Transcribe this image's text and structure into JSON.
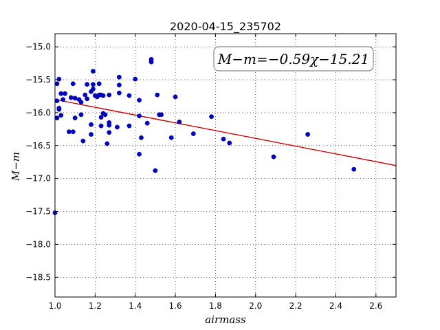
{
  "chart_data": {
    "type": "scatter",
    "title": "2020-04-15_235702",
    "xlabel": "airmass",
    "ylabel": "M−m",
    "xlim": [
      1.0,
      2.7
    ],
    "ylim": [
      -18.8,
      -14.8
    ],
    "y_inverted": true,
    "grid": true,
    "x_ticks": [
      1.0,
      1.2,
      1.4,
      1.6,
      1.8,
      2.0,
      2.2,
      2.4,
      2.6
    ],
    "x_tick_labels": [
      "1.0",
      "1.2",
      "1.4",
      "1.6",
      "1.8",
      "2.0",
      "2.2",
      "2.4",
      "2.6"
    ],
    "y_ticks": [
      -15.0,
      -15.5,
      -16.0,
      -16.5,
      -17.0,
      -17.5,
      -18.0,
      -18.5
    ],
    "y_tick_labels": [
      "−15.0",
      "−15.5",
      "−16.0",
      "−16.5",
      "−17.0",
      "−17.5",
      "−18.0",
      "−18.5"
    ],
    "annotation": "M−m=−0.59χ−15.21",
    "fit": {
      "slope": -0.59,
      "intercept": -15.21,
      "color": "#cc0000"
    },
    "point_color": "#0000cc",
    "series": [
      {
        "points": [
          [
            1.0,
            -17.52
          ],
          [
            1.01,
            -16.08
          ],
          [
            1.01,
            -15.82
          ],
          [
            1.01,
            -15.56
          ],
          [
            1.02,
            -15.95
          ],
          [
            1.02,
            -15.49
          ],
          [
            1.02,
            -15.93
          ],
          [
            1.03,
            -15.71
          ],
          [
            1.03,
            -16.04
          ],
          [
            1.04,
            -15.8
          ],
          [
            1.05,
            -15.71
          ],
          [
            1.07,
            -16.29
          ],
          [
            1.08,
            -15.77
          ],
          [
            1.09,
            -15.56
          ],
          [
            1.09,
            -16.29
          ],
          [
            1.1,
            -15.78
          ],
          [
            1.1,
            -16.08
          ],
          [
            1.12,
            -15.8
          ],
          [
            1.13,
            -16.03
          ],
          [
            1.13,
            -15.84
          ],
          [
            1.14,
            -16.43
          ],
          [
            1.15,
            -15.73
          ],
          [
            1.16,
            -15.57
          ],
          [
            1.16,
            -15.79
          ],
          [
            1.18,
            -16.33
          ],
          [
            1.18,
            -16.18
          ],
          [
            1.18,
            -15.68
          ],
          [
            1.19,
            -15.64
          ],
          [
            1.19,
            -15.57
          ],
          [
            1.19,
            -15.37
          ],
          [
            1.2,
            -15.74
          ],
          [
            1.21,
            -15.76
          ],
          [
            1.22,
            -15.73
          ],
          [
            1.22,
            -15.56
          ],
          [
            1.23,
            -15.73
          ],
          [
            1.23,
            -16.2
          ],
          [
            1.23,
            -16.07
          ],
          [
            1.24,
            -16.01
          ],
          [
            1.24,
            -15.74
          ],
          [
            1.25,
            -16.03
          ],
          [
            1.26,
            -16.47
          ],
          [
            1.27,
            -16.3
          ],
          [
            1.27,
            -16.19
          ],
          [
            1.27,
            -16.15
          ],
          [
            1.27,
            -15.73
          ],
          [
            1.31,
            -16.22
          ],
          [
            1.32,
            -15.46
          ],
          [
            1.32,
            -15.58
          ],
          [
            1.32,
            -15.7
          ],
          [
            1.37,
            -16.2
          ],
          [
            1.37,
            -15.74
          ],
          [
            1.4,
            -15.49
          ],
          [
            1.42,
            -15.81
          ],
          [
            1.42,
            -16.05
          ],
          [
            1.42,
            -16.63
          ],
          [
            1.43,
            -16.38
          ],
          [
            1.46,
            -16.16
          ],
          [
            1.48,
            -15.19
          ],
          [
            1.48,
            -15.23
          ],
          [
            1.5,
            -16.88
          ],
          [
            1.51,
            -15.73
          ],
          [
            1.52,
            -16.03
          ],
          [
            1.53,
            -16.03
          ],
          [
            1.58,
            -16.38
          ],
          [
            1.6,
            -15.76
          ],
          [
            1.62,
            -16.14
          ],
          [
            1.69,
            -16.32
          ],
          [
            1.78,
            -16.06
          ],
          [
            1.84,
            -16.4
          ],
          [
            1.87,
            -16.46
          ],
          [
            2.09,
            -16.67
          ],
          [
            2.26,
            -16.33
          ],
          [
            2.49,
            -16.86
          ]
        ]
      }
    ]
  }
}
